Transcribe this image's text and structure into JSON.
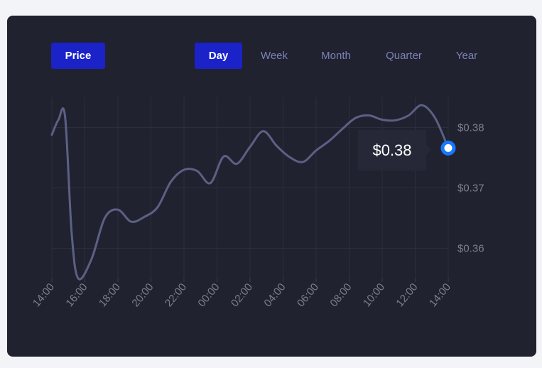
{
  "header": {
    "price_label": "Price",
    "tabs": [
      {
        "label": "Day",
        "active": true
      },
      {
        "label": "Week",
        "active": false
      },
      {
        "label": "Month",
        "active": false
      },
      {
        "label": "Quarter",
        "active": false
      },
      {
        "label": "Year",
        "active": false
      }
    ]
  },
  "tooltip": {
    "value": "$0.38"
  },
  "colors": {
    "accent": "#1a22c8",
    "line": "#5c6085",
    "marker": "#1677ff",
    "card": "#20222f"
  },
  "chart_data": {
    "type": "line",
    "title": "",
    "xlabel": "",
    "ylabel": "",
    "x_ticks": [
      "14:00",
      "16:00",
      "18:00",
      "20:00",
      "22:00",
      "00:00",
      "02:00",
      "04:00",
      "06:00",
      "08:00",
      "10:00",
      "12:00",
      "14:00"
    ],
    "y_ticks": [
      {
        "value": 0.36,
        "label": "$0.36"
      },
      {
        "value": 0.37,
        "label": "$0.37"
      },
      {
        "value": 0.38,
        "label": "$0.38"
      }
    ],
    "ylim": [
      0.355,
      0.385
    ],
    "series": [
      {
        "points": [
          [
            0,
            0.3788
          ],
          [
            0.5,
            0.3813
          ],
          [
            1,
            0.3818
          ],
          [
            1.5,
            0.3625
          ],
          [
            2,
            0.355
          ],
          [
            3,
            0.3582
          ],
          [
            4,
            0.365
          ],
          [
            5,
            0.3664
          ],
          [
            6,
            0.3644
          ],
          [
            7,
            0.3652
          ],
          [
            8,
            0.3668
          ],
          [
            9,
            0.371
          ],
          [
            10,
            0.373
          ],
          [
            11,
            0.3728
          ],
          [
            12,
            0.3708
          ],
          [
            13,
            0.3752
          ],
          [
            14,
            0.374
          ],
          [
            15,
            0.3768
          ],
          [
            16,
            0.3794
          ],
          [
            17,
            0.377
          ],
          [
            18,
            0.3751
          ],
          [
            19,
            0.3743
          ],
          [
            20,
            0.3762
          ],
          [
            21,
            0.3778
          ],
          [
            22,
            0.3798
          ],
          [
            23,
            0.3816
          ],
          [
            24,
            0.382
          ],
          [
            25,
            0.3813
          ],
          [
            26,
            0.3812
          ],
          [
            27,
            0.382
          ],
          [
            28,
            0.3837
          ],
          [
            29,
            0.3816
          ],
          [
            30,
            0.3766
          ]
        ]
      }
    ],
    "x_range": [
      0,
      30
    ],
    "grid": true,
    "legend": "none",
    "marker_point": [
      30,
      0.3766
    ]
  }
}
